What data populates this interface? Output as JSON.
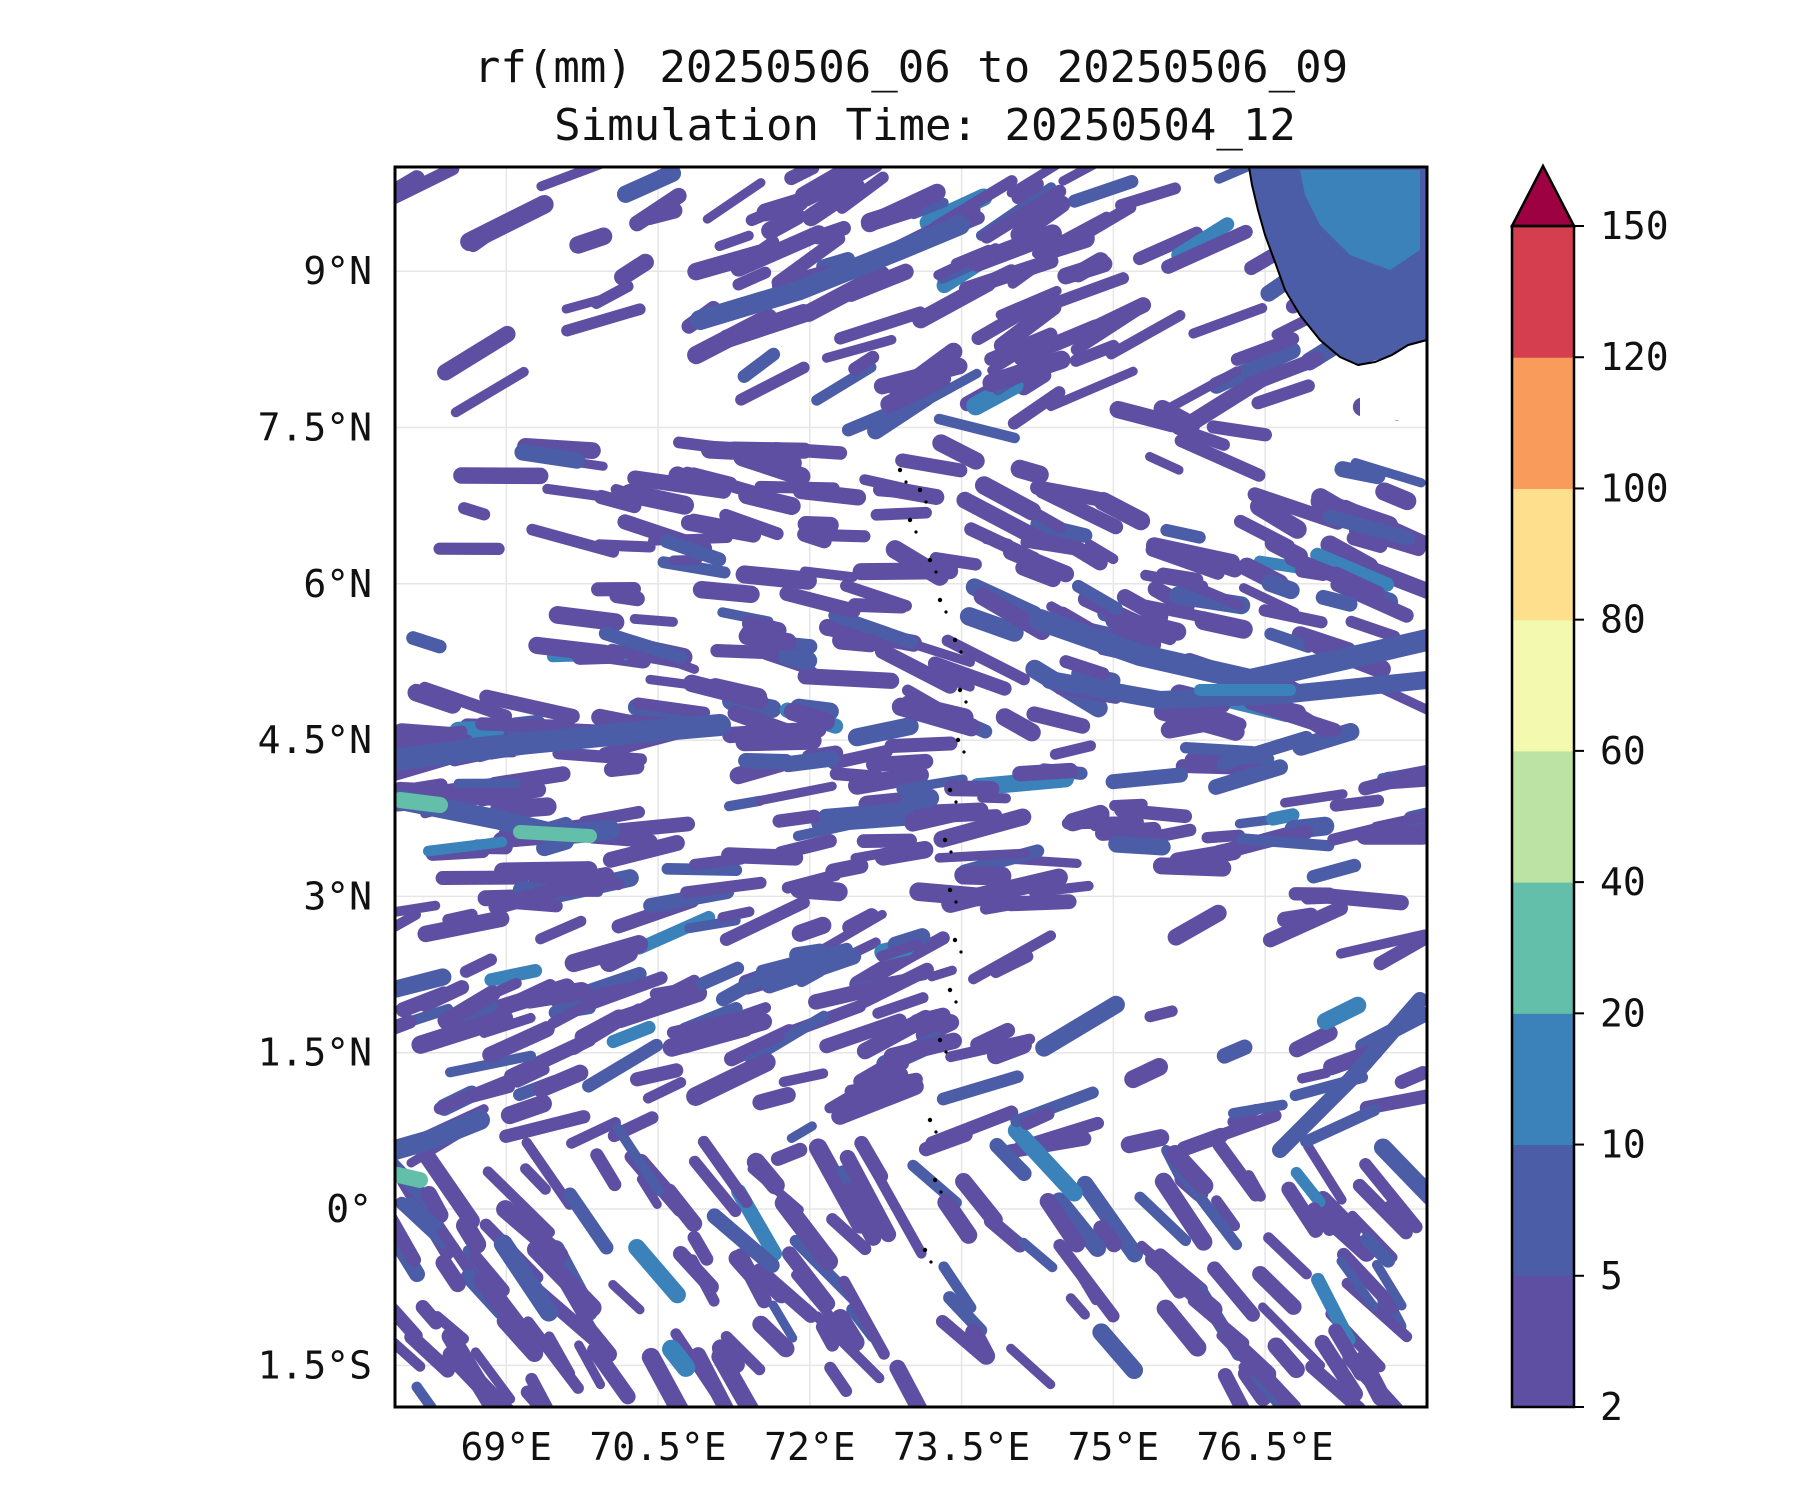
{
  "title_line1": "rf(mm) 20250506_06 to 20250506_09",
  "title_line2": "Simulation Time: 20250504_12",
  "map": {
    "lon_range": [
      67.9,
      78.1
    ],
    "lat_range": [
      -1.9,
      10.0
    ],
    "x_ticks": [
      {
        "value": 69.0,
        "label": "69°E"
      },
      {
        "value": 70.5,
        "label": "70.5°E"
      },
      {
        "value": 72.0,
        "label": "72°E"
      },
      {
        "value": 73.5,
        "label": "73.5°E"
      },
      {
        "value": 75.0,
        "label": "75°E"
      },
      {
        "value": 76.5,
        "label": "76.5°E"
      }
    ],
    "y_ticks": [
      {
        "value": 9.0,
        "label": "9°N"
      },
      {
        "value": 7.5,
        "label": "7.5°N"
      },
      {
        "value": 6.0,
        "label": "6°N"
      },
      {
        "value": 4.5,
        "label": "4.5°N"
      },
      {
        "value": 3.0,
        "label": "3°N"
      },
      {
        "value": 1.5,
        "label": "1.5°N"
      },
      {
        "value": 0.0,
        "label": "0°"
      },
      {
        "value": -1.5,
        "label": "1.5°S"
      }
    ],
    "grid": true
  },
  "colorbar": {
    "levels": [
      "2",
      "5",
      "10",
      "20",
      "40",
      "60",
      "80",
      "100",
      "120",
      "150"
    ],
    "colors": [
      "#5e4fa2",
      "#4c5da8",
      "#3a82b9",
      "#63bfa9",
      "#bde3a4",
      "#f3f9ae",
      "#fddf8e",
      "#f99b5b",
      "#d53e4f"
    ],
    "extend_color": "#9e0142",
    "extend": "max"
  },
  "rain_palette": {
    "light": "#5e4fa2",
    "moderate": "#4c5da8",
    "heavy": "#3a82b9",
    "very_heavy": "#63bfa9"
  }
}
